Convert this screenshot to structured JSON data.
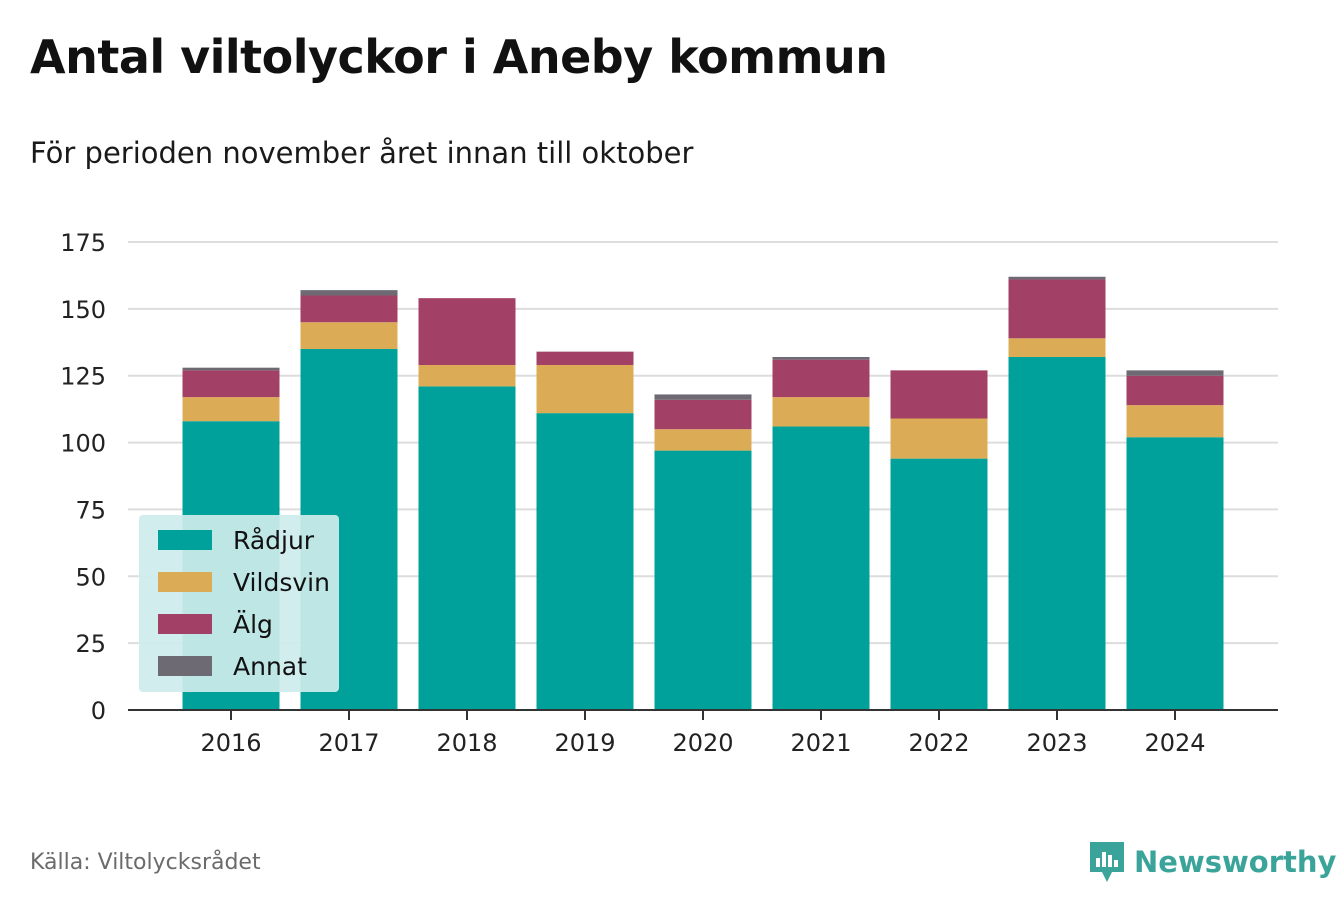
{
  "title": "Antal viltolyckor i Aneby kommun",
  "subtitle": "För perioden november året innan till oktober",
  "source": "Källa: Viltolycksrådet",
  "brand": "Newsworthy",
  "colors": {
    "Rådjur": "#00a19a",
    "Vildsvin": "#dcab56",
    "Älg": "#a34065",
    "Annat": "#6d6a73",
    "grid": "#dddddd",
    "axis": "#333333",
    "brand": "#3aa39a",
    "legend_bg": "#cdeceb"
  },
  "chart_data": {
    "type": "bar",
    "stacked": true,
    "categories": [
      "2016",
      "2017",
      "2018",
      "2019",
      "2020",
      "2021",
      "2022",
      "2023",
      "2024"
    ],
    "series": [
      {
        "name": "Rådjur",
        "values": [
          108,
          135,
          121,
          111,
          97,
          106,
          94,
          132,
          102
        ]
      },
      {
        "name": "Vildsvin",
        "values": [
          9,
          10,
          8,
          18,
          8,
          11,
          15,
          7,
          12
        ]
      },
      {
        "name": "Älg",
        "values": [
          10,
          10,
          25,
          5,
          11,
          14,
          18,
          22,
          11
        ]
      },
      {
        "name": "Annat",
        "values": [
          1,
          2,
          0,
          0,
          2,
          1,
          0,
          1,
          2
        ]
      }
    ],
    "ylim": [
      0,
      175
    ],
    "yticks": [
      0,
      25,
      50,
      75,
      100,
      125,
      150,
      175
    ],
    "grid": true,
    "legend_position": "bottom-left"
  }
}
